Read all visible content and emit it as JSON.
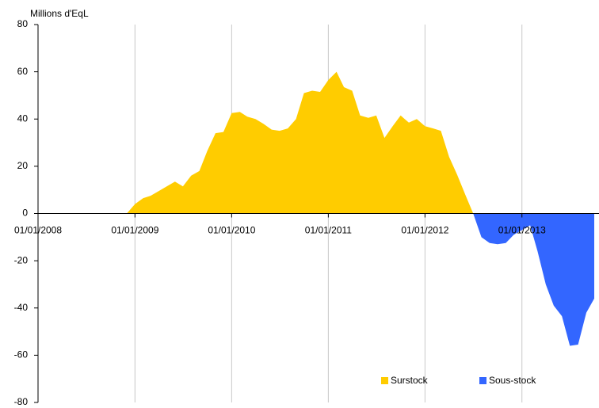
{
  "chart_data": {
    "type": "area",
    "ylabel": "Millions d'EqL",
    "x": [
      "01/12/2008",
      "01/01/2009",
      "01/02/2009",
      "01/03/2009",
      "01/04/2009",
      "01/05/2009",
      "01/06/2009",
      "01/07/2009",
      "01/08/2009",
      "01/09/2009",
      "01/10/2009",
      "01/11/2009",
      "01/12/2009",
      "01/01/2010",
      "01/02/2010",
      "01/03/2010",
      "01/04/2010",
      "01/05/2010",
      "01/06/2010",
      "01/07/2010",
      "01/08/2010",
      "01/09/2010",
      "01/10/2010",
      "01/11/2010",
      "01/12/2010",
      "01/01/2011",
      "01/02/2011",
      "01/03/2011",
      "01/04/2011",
      "01/05/2011",
      "01/06/2011",
      "01/07/2011",
      "01/08/2011",
      "01/09/2011",
      "01/10/2011",
      "01/11/2011",
      "01/12/2011",
      "01/01/2012",
      "01/02/2012",
      "01/03/2012",
      "01/04/2012",
      "01/05/2012",
      "01/06/2012",
      "01/07/2012",
      "01/08/2012",
      "01/09/2012",
      "01/10/2012",
      "01/11/2012",
      "01/12/2012",
      "01/01/2013",
      "01/02/2013",
      "01/03/2013",
      "01/04/2013",
      "01/05/2013",
      "01/06/2013",
      "01/07/2013",
      "01/08/2013",
      "01/09/2013",
      "01/10/2013"
    ],
    "series": [
      {
        "name": "Surstock",
        "color": "#ffcc00",
        "values": [
          0,
          4,
          6.5,
          7.5,
          9.5,
          11.5,
          13.5,
          11.5,
          16,
          18,
          26.5,
          34,
          34.5,
          42.5,
          43,
          41,
          40,
          38,
          35.5,
          35,
          36,
          40,
          51,
          52,
          51.5,
          56.5,
          60,
          53.5,
          52,
          41.5,
          40.5,
          41.5,
          32,
          37,
          41.5,
          38.5,
          40,
          37,
          36,
          35,
          24,
          16.5,
          8,
          0,
          null,
          null,
          null,
          null,
          null,
          null,
          null,
          null,
          null,
          null,
          null,
          null,
          null,
          null,
          null
        ]
      },
      {
        "name": "Sous-stock",
        "color": "#3366ff",
        "values": [
          null,
          null,
          null,
          null,
          null,
          null,
          null,
          null,
          null,
          null,
          null,
          null,
          null,
          null,
          null,
          null,
          null,
          null,
          null,
          null,
          null,
          null,
          null,
          null,
          null,
          null,
          null,
          null,
          null,
          null,
          null,
          null,
          null,
          null,
          null,
          null,
          null,
          null,
          null,
          null,
          null,
          null,
          null,
          0,
          -10,
          -12.5,
          -13,
          -12.5,
          -9,
          -7,
          -5,
          -16,
          -30,
          -39,
          -43.5,
          -56,
          -55.5,
          -42,
          -36
        ]
      }
    ],
    "xlim": [
      "01/01/2008",
      "01/10/2013"
    ],
    "xticks": [
      "01/01/2008",
      "01/01/2009",
      "01/01/2010",
      "01/01/2011",
      "01/01/2012",
      "01/01/2013"
    ],
    "ylim": [
      -80,
      80
    ],
    "yticks": [
      -80,
      -60,
      -40,
      -20,
      0,
      20,
      40,
      60,
      80
    ],
    "grid": true,
    "legend": "bottom-right"
  }
}
